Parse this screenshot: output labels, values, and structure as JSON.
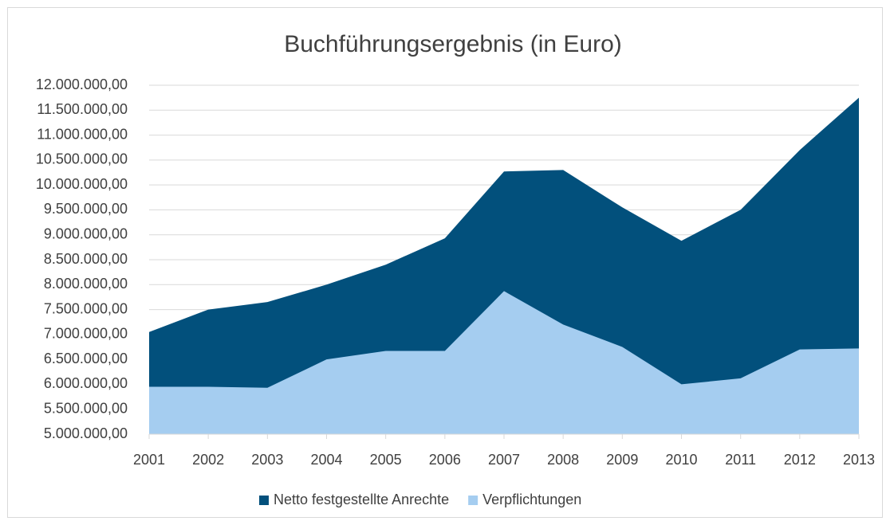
{
  "chart_data": {
    "type": "area",
    "title": "Buchführungsergebnis (in Euro)",
    "categories": [
      "2001",
      "2002",
      "2003",
      "2004",
      "2005",
      "2006",
      "2007",
      "2008",
      "2009",
      "2010",
      "2011",
      "2012",
      "2013"
    ],
    "series": [
      {
        "name": "Netto festgestellte Anrechte",
        "color": "#02507c",
        "values": [
          7050000,
          7500000,
          7650000,
          8000000,
          8400000,
          8930000,
          10270000,
          10300000,
          9550000,
          8880000,
          9500000,
          10700000,
          11750000
        ]
      },
      {
        "name": "Verpflichtungen",
        "color": "#a5cdf0",
        "values": [
          5950000,
          5950000,
          5930000,
          6500000,
          6670000,
          6670000,
          7870000,
          7200000,
          6750000,
          6000000,
          6120000,
          6700000,
          6720000
        ]
      }
    ],
    "ylim": [
      5000000,
      12000000
    ],
    "yticks": [
      {
        "value": 5000000,
        "label": "5.000.000,00"
      },
      {
        "value": 5500000,
        "label": "5.500.000,00"
      },
      {
        "value": 6000000,
        "label": "6.000.000,00"
      },
      {
        "value": 6500000,
        "label": "6.500.000,00"
      },
      {
        "value": 7000000,
        "label": "7.000.000,00"
      },
      {
        "value": 7500000,
        "label": "7.500.000,00"
      },
      {
        "value": 8000000,
        "label": "8.000.000,00"
      },
      {
        "value": 8500000,
        "label": "8.500.000,00"
      },
      {
        "value": 9000000,
        "label": "9.000.000,00"
      },
      {
        "value": 9500000,
        "label": "9.500.000,00"
      },
      {
        "value": 10000000,
        "label": "10.000.000,00"
      },
      {
        "value": 10500000,
        "label": "10.500.000,00"
      },
      {
        "value": 11000000,
        "label": "11.000.000,00"
      },
      {
        "value": 11500000,
        "label": "11.500.000,00"
      },
      {
        "value": 12000000,
        "label": "12.000.000,00"
      }
    ],
    "grid": true,
    "legend": "bottom"
  }
}
